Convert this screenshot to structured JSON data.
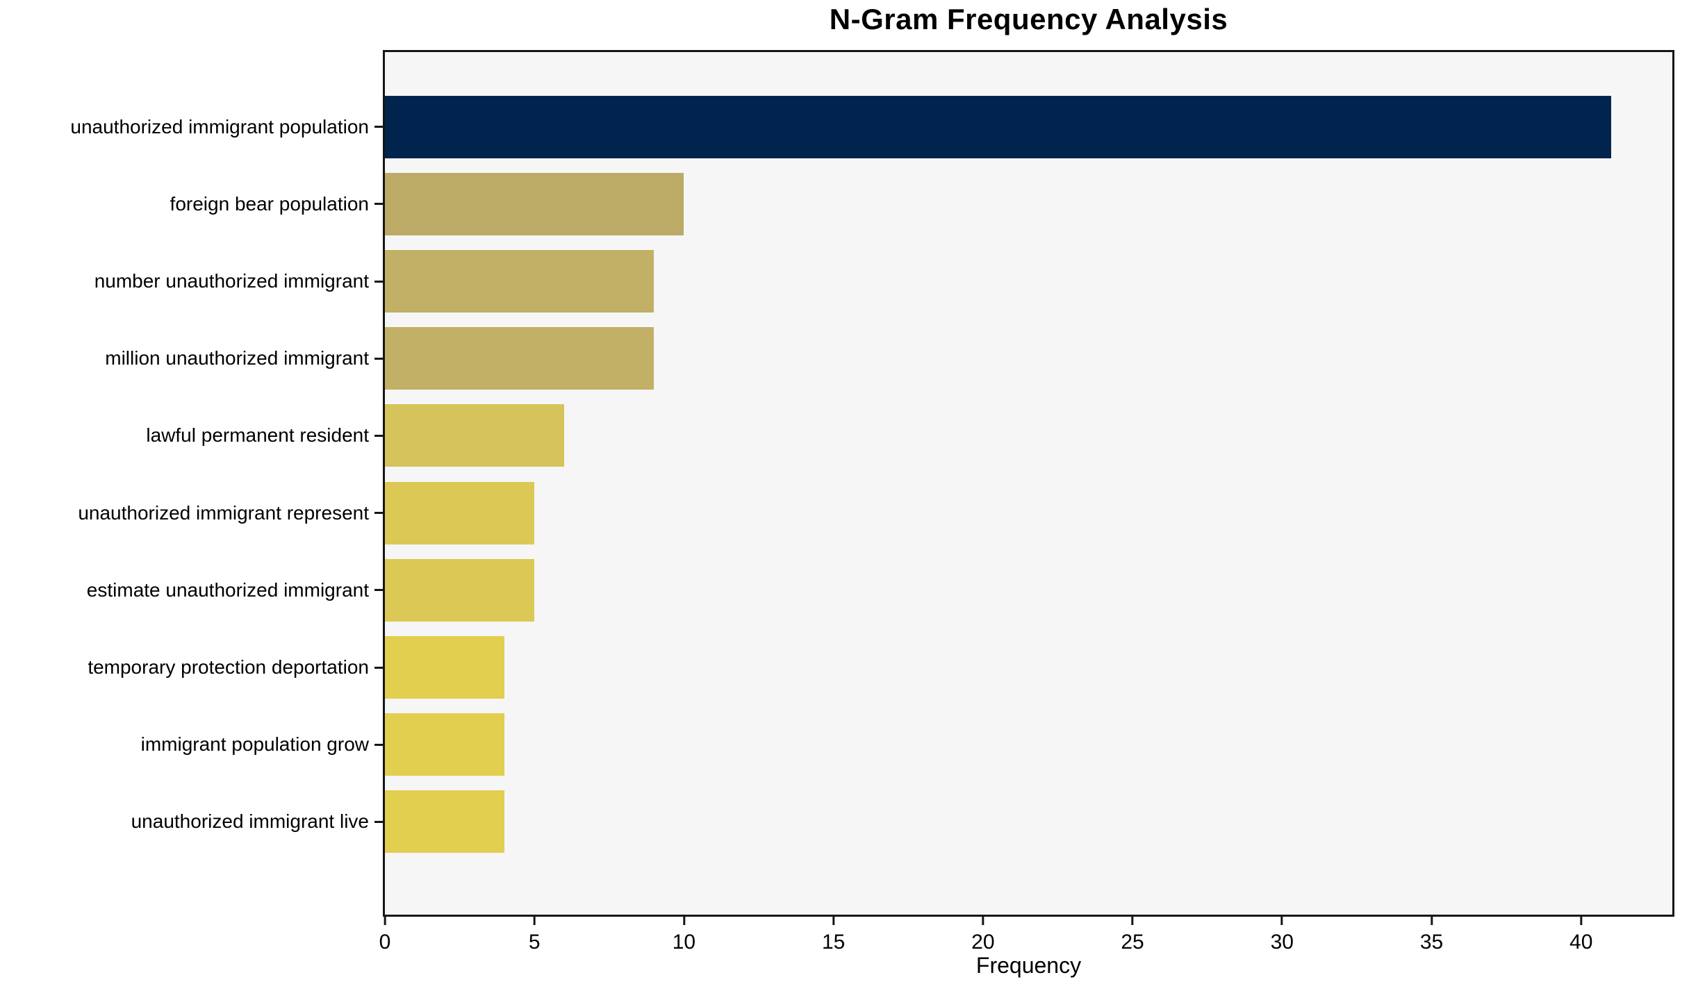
{
  "colors": {
    "page_background": "#ffffff",
    "plot_background": "#f6f6f6",
    "axis": "#161616",
    "text": "#000000",
    "max_bar": "#01244f",
    "min_bar": "#e2ce4f"
  },
  "chart_data": {
    "type": "bar",
    "orientation": "horizontal",
    "title": "N-Gram Frequency Analysis",
    "xlabel": "Frequency",
    "ylabel": "",
    "xlim": [
      0,
      43.05
    ],
    "xticks": [
      0,
      5,
      10,
      15,
      20,
      25,
      30,
      35,
      40
    ],
    "grid": false,
    "legend": null,
    "categories": [
      "unauthorized immigrant population",
      "foreign bear population",
      "number unauthorized immigrant",
      "million unauthorized immigrant",
      "lawful permanent resident",
      "unauthorized immigrant represent",
      "estimate unauthorized immigrant",
      "temporary protection deportation",
      "immigrant population grow",
      "unauthorized immigrant live"
    ],
    "values": [
      41,
      10,
      9,
      9,
      6,
      5,
      5,
      4,
      4,
      4
    ],
    "bar_colors": [
      "#01244f",
      "#bcab66",
      "#c1b065",
      "#c1b065",
      "#d5c35b",
      "#dcc854",
      "#dcc854",
      "#e2ce4f",
      "#e2ce4f",
      "#e2ce4f"
    ]
  }
}
